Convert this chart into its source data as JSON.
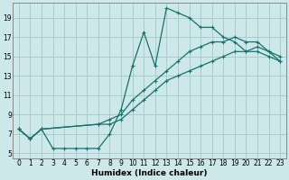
{
  "xlabel": "Humidex (Indice chaleur)",
  "xlim": [
    -0.5,
    23.5
  ],
  "ylim": [
    4.5,
    20.5
  ],
  "xticks": [
    0,
    1,
    2,
    3,
    4,
    5,
    6,
    7,
    8,
    9,
    10,
    11,
    12,
    13,
    14,
    15,
    16,
    17,
    18,
    19,
    20,
    21,
    22,
    23
  ],
  "yticks": [
    5,
    7,
    9,
    11,
    13,
    15,
    17,
    19
  ],
  "bg_color": "#cce8e8",
  "grid_color": "#aacccc",
  "line_color": "#1a7070",
  "line1_x": [
    0,
    1,
    2,
    3,
    4,
    5,
    6,
    7,
    8,
    9,
    10,
    11,
    12,
    13,
    14,
    15,
    16,
    17,
    18,
    19,
    20,
    21,
    22,
    23
  ],
  "line1_y": [
    7.5,
    6.5,
    7.5,
    5.5,
    5.5,
    5.5,
    5.5,
    5.5,
    7.0,
    9.5,
    14.0,
    17.5,
    14.0,
    20.0,
    19.5,
    19.0,
    18.0,
    18.0,
    17.0,
    16.5,
    15.5,
    15.5,
    15.0,
    14.5
  ],
  "line2_x": [
    0,
    1,
    2,
    7,
    8,
    9,
    10,
    11,
    12,
    13,
    14,
    15,
    16,
    17,
    18,
    19,
    20,
    21,
    22,
    23
  ],
  "line2_y": [
    7.5,
    6.5,
    7.5,
    8.0,
    8.5,
    9.0,
    10.5,
    11.5,
    12.5,
    13.5,
    14.5,
    15.5,
    16.0,
    16.5,
    16.5,
    17.0,
    16.5,
    16.5,
    15.5,
    15.0
  ],
  "line3_x": [
    0,
    1,
    2,
    7,
    8,
    9,
    10,
    11,
    12,
    13,
    14,
    15,
    16,
    17,
    18,
    19,
    20,
    21,
    22,
    23
  ],
  "line3_y": [
    7.5,
    6.5,
    7.5,
    8.0,
    8.0,
    8.5,
    9.5,
    10.5,
    11.5,
    12.5,
    13.0,
    13.5,
    14.0,
    14.5,
    15.0,
    15.5,
    15.5,
    16.0,
    15.5,
    14.5
  ]
}
